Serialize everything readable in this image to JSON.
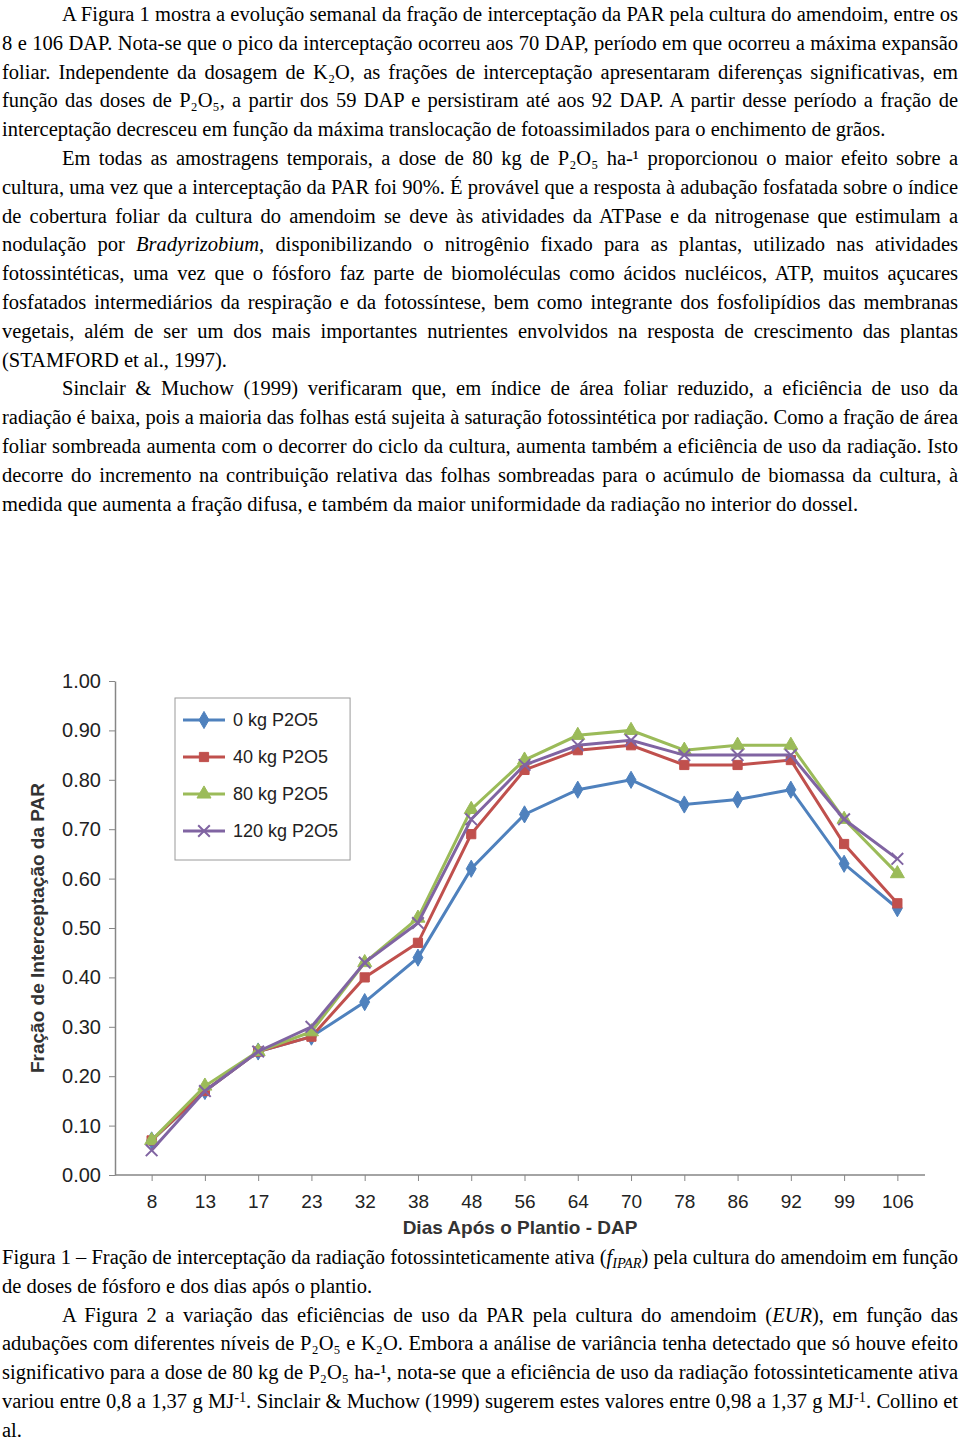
{
  "document": {
    "paragraphs_top": [
      [
        {
          "text": "A Figura 1 mostra a evolução semanal da fração de interceptação da PAR pela cultura do amendoim, entre os 8 e 106 DAP. Nota-se que o pico da interceptação ocorreu aos 70 DAP, período em que ocorreu a máxima expansão foliar. Independente da dosagem de K₂O, as frações de interceptação apresentaram diferenças significativas, em função das doses de P₂O₅, a partir dos 59 DAP e persistiram até aos 92 DAP. A partir desse período a fração de interceptação decresceu em função da máxima translocação de fotoassimilados para o enchimento de grãos."
        }
      ],
      [
        {
          "text": "Em todas as amostragens temporais, a dose de 80 kg de P₂O₅ ha-¹ proporcionou o maior efeito sobre a cultura, uma vez que a interceptação da PAR foi 90%. É provável que a resposta à adubação fosfatada sobre o índice de cobertura foliar da cultura do amendoim se deve às atividades da ATPase e da nitrogenase que estimulam a nodulação por "
        },
        {
          "text": "Bradyrizobium",
          "italic": true
        },
        {
          "text": ", disponibilizando o nitrogênio fixado para as plantas, utilizado nas atividades fotossintéticas, uma vez que o fósforo faz parte de biomoléculas como ácidos nucléicos, ATP, muitos açucares fosfatados intermediários da respiração e da fotossíntese, bem como integrante dos fosfolipídios das membranas vegetais, além de ser um dos mais importantes nutrientes envolvidos na resposta de crescimento das plantas (STAMFORD et al., 1997)."
        }
      ],
      [
        {
          "text": "Sinclair & Muchow (1999) verificaram que, em índice de área foliar reduzido, a eficiência de uso da radiação é baixa, pois a maioria das folhas está sujeita à saturação fotossintética por radiação. Como a fração de área foliar sombreada aumenta com o decorrer do ciclo da cultura, aumenta também a eficiência de uso da radiação. Isto decorre do incremento na contribuição relativa das folhas sombreadas para o acúmulo de biomassa da cultura, à medida que aumenta a fração difusa, e também da maior uniformidade da radiação no interior do dossel."
        }
      ]
    ],
    "caption": [
      {
        "text": "Figura 1 – Fração de interceptação da radiação fotossinteticamente ativa ("
      },
      {
        "text": "f",
        "italic": true
      },
      {
        "text": "IPAR",
        "italic": true,
        "sub": true
      },
      {
        "text": ") pela cultura do amendoim em função de doses de fósforo e dos dias após o plantio."
      }
    ],
    "paragraphs_bottom": [
      [
        {
          "text": "A Figura 2 a variação das eficiências de uso da PAR pela cultura do amendoim ("
        },
        {
          "text": "EUR",
          "italic": true
        },
        {
          "text": "), em função das adubações com diferentes níveis de P₂O₅ e K₂O. Embora a análise de variância tenha detectado que só houve efeito significativo para a dose de 80 kg de P₂O₅ ha-¹, nota-se que a eficiência de uso da radiação fotossinteticamente ativa variou entre 0,8 a 1,37 g MJ"
        },
        {
          "text": "-1",
          "sup": true
        },
        {
          "text": ". Sinclair & Muchow (1999) sugerem estes valores entre 0,98 a 1,37 g MJ"
        },
        {
          "text": "-1",
          "sup": true
        },
        {
          "text": ". Collino et al."
        }
      ]
    ]
  },
  "chart_data": {
    "type": "line",
    "y_label": "Fração de Interceptação da PAR",
    "x_label": "Dias Após o Plantio - DAP",
    "categories": [
      "8",
      "13",
      "17",
      "23",
      "32",
      "38",
      "48",
      "56",
      "64",
      "70",
      "78",
      "86",
      "92",
      "99",
      "106"
    ],
    "series": [
      {
        "name": "0 kg P2O5",
        "color": "#4f81bd",
        "marker": "diamond",
        "values": [
          0.07,
          0.17,
          0.25,
          0.28,
          0.35,
          0.44,
          0.62,
          0.73,
          0.78,
          0.8,
          0.75,
          0.76,
          0.78,
          0.63,
          0.54
        ]
      },
      {
        "name": "40 kg P2O5",
        "color": "#c0504d",
        "marker": "square",
        "values": [
          0.07,
          0.17,
          0.25,
          0.28,
          0.4,
          0.47,
          0.69,
          0.82,
          0.86,
          0.87,
          0.83,
          0.83,
          0.84,
          0.67,
          0.55
        ]
      },
      {
        "name": "80 kg P2O5",
        "color": "#9bbb59",
        "marker": "triangle",
        "values": [
          0.07,
          0.18,
          0.25,
          0.29,
          0.43,
          0.52,
          0.74,
          0.84,
          0.89,
          0.9,
          0.86,
          0.87,
          0.87,
          0.72,
          0.61
        ]
      },
      {
        "name": "120 kg P2O5",
        "color": "#8064a2",
        "marker": "x",
        "values": [
          0.05,
          0.17,
          0.25,
          0.3,
          0.43,
          0.51,
          0.72,
          0.83,
          0.87,
          0.88,
          0.85,
          0.85,
          0.85,
          0.72,
          0.64
        ]
      }
    ],
    "ylim": [
      0,
      1
    ],
    "yticks": [
      {
        "value": 0,
        "label": "0.00"
      },
      {
        "value": 0.1,
        "label": "0.10"
      },
      {
        "value": 0.2,
        "label": "0.20"
      },
      {
        "value": 0.3,
        "label": "0.30"
      },
      {
        "value": 0.4,
        "label": "0.40"
      },
      {
        "value": 0.5,
        "label": "0.50"
      },
      {
        "value": 0.6,
        "label": "0.60"
      },
      {
        "value": 0.7,
        "label": "0.70"
      },
      {
        "value": 0.8,
        "label": "0.80"
      },
      {
        "value": 0.9,
        "label": "0.90"
      },
      {
        "value": 1,
        "label": "1.00"
      }
    ],
    "grid": false,
    "legend": "upper-left"
  }
}
